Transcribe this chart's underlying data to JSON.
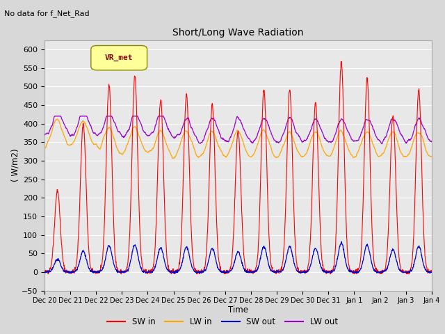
{
  "title": "Short/Long Wave Radiation",
  "xlabel": "Time",
  "ylabel": "( W/m2)",
  "ylim": [
    -50,
    625
  ],
  "bg_color": "#e0e0e0",
  "plot_bg_color": "#e8e8e8",
  "legend_items": [
    "SW in",
    "LW in",
    "SW out",
    "LW out"
  ],
  "legend_colors": [
    "#ff0000",
    "#ffa500",
    "#0000cc",
    "#9900cc"
  ],
  "annotation_text": "No data for f_Net_Rad",
  "legend_box_label": "VR_met",
  "legend_box_color": "#ffff99",
  "legend_box_edgecolor": "#888800"
}
